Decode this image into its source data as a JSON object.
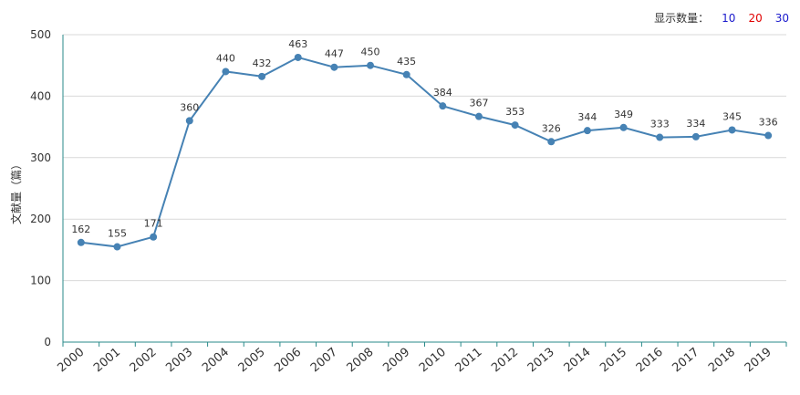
{
  "controls": {
    "label": "显示数量：",
    "options": [
      {
        "text": "10",
        "color": "#1a1acc"
      },
      {
        "text": "20",
        "color": "#e00000"
      },
      {
        "text": "30",
        "color": "#1a1acc"
      }
    ]
  },
  "colors": {
    "line": "#4682b4",
    "grid": "#d9d9d9",
    "axis": "#2a8a8a",
    "text": "#333333"
  },
  "chart_data": {
    "type": "line",
    "title": "",
    "xlabel": "",
    "ylabel": "文献量（篇）",
    "ylim": [
      0,
      500
    ],
    "yticks": [
      0,
      100,
      200,
      300,
      400,
      500
    ],
    "grid": true,
    "categories": [
      "2000",
      "2001",
      "2002",
      "2003",
      "2004",
      "2005",
      "2006",
      "2007",
      "2008",
      "2009",
      "2010",
      "2011",
      "2012",
      "2013",
      "2014",
      "2015",
      "2016",
      "2017",
      "2018",
      "2019"
    ],
    "series": [
      {
        "values": [
          162,
          155,
          171,
          360,
          440,
          432,
          463,
          447,
          450,
          435,
          384,
          367,
          353,
          326,
          344,
          349,
          333,
          334,
          345,
          336
        ]
      }
    ]
  }
}
